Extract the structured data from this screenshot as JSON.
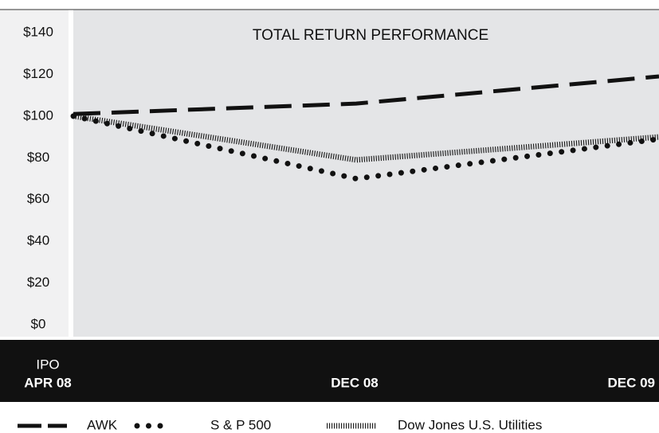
{
  "chart_data": {
    "type": "line",
    "title": "TOTAL RETURN PERFORMANCE",
    "categories": [
      "APR 08",
      "DEC 08",
      "DEC 09"
    ],
    "annotations": [
      "IPO"
    ],
    "series": [
      {
        "name": "AWK",
        "color": "#111111",
        "values": [
          101,
          106,
          119
        ]
      },
      {
        "name": "S & P 500",
        "color": "#111111",
        "values": [
          100,
          70,
          89
        ]
      },
      {
        "name": "Dow Jones U.S. Utilities",
        "color": "#222222",
        "values": [
          100,
          79,
          90
        ]
      }
    ],
    "ylim": [
      0,
      140
    ],
    "yticks": [
      {
        "value": 0,
        "label": "$0"
      },
      {
        "value": 20,
        "label": "$20"
      },
      {
        "value": 40,
        "label": "$40"
      },
      {
        "value": 60,
        "label": "$60"
      },
      {
        "value": 80,
        "label": "$80"
      },
      {
        "value": 100,
        "label": "$100"
      },
      {
        "value": 120,
        "label": "$120"
      },
      {
        "value": 140,
        "label": "$140"
      }
    ]
  }
}
